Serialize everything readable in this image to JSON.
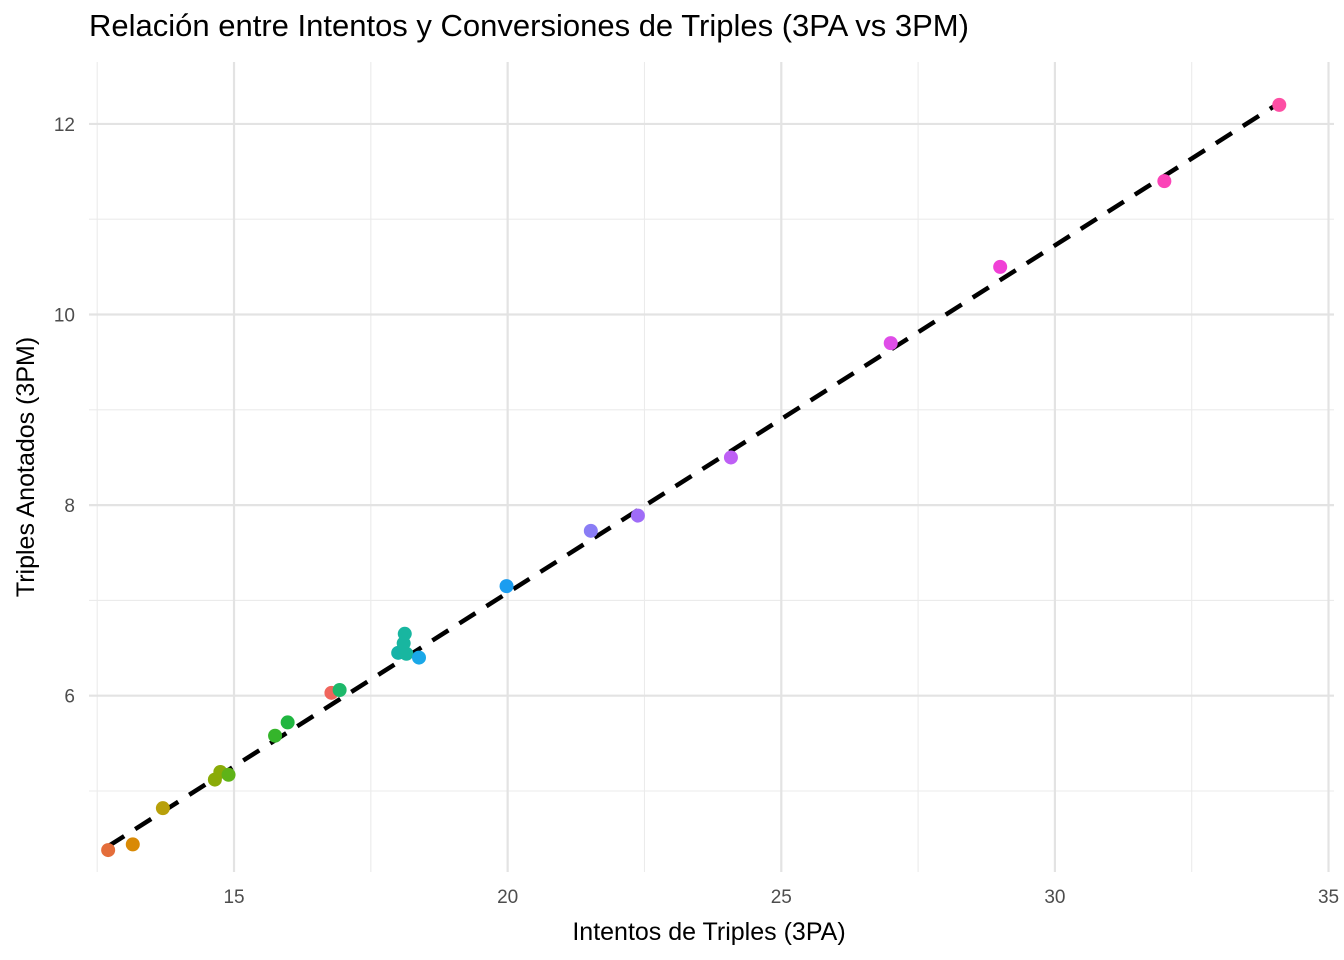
{
  "chart_data": {
    "type": "scatter",
    "title": "Relación entre Intentos y Conversiones de Triples (3PA vs 3PM)",
    "xlabel": "Intentos de Triples (3PA)",
    "ylabel": "Triples Anotados (3PM)",
    "xlim": [
      12.35,
      35.1
    ],
    "ylim": [
      4.15,
      12.65
    ],
    "x_ticks": [
      15,
      20,
      25,
      30,
      35
    ],
    "y_ticks": [
      6,
      8,
      10,
      12
    ],
    "x_minor_ticks": [
      12.5,
      17.5,
      22.5,
      27.5,
      32.5
    ],
    "y_minor_ticks": [
      5,
      7,
      9,
      11
    ],
    "grid": true,
    "legend": "none",
    "points": [
      {
        "x": 12.7,
        "y": 4.38,
        "color": "#e46d3a"
      },
      {
        "x": 13.15,
        "y": 4.44,
        "color": "#d98a05"
      },
      {
        "x": 13.7,
        "y": 4.82,
        "color": "#b8a00a"
      },
      {
        "x": 14.65,
        "y": 5.12,
        "color": "#8aab08"
      },
      {
        "x": 14.75,
        "y": 5.2,
        "color": "#8aab08"
      },
      {
        "x": 14.9,
        "y": 5.17,
        "color": "#5fb318"
      },
      {
        "x": 15.75,
        "y": 5.58,
        "color": "#35b52b"
      },
      {
        "x": 15.98,
        "y": 5.72,
        "color": "#20b640"
      },
      {
        "x": 16.78,
        "y": 6.03,
        "color": "#f0655c"
      },
      {
        "x": 16.93,
        "y": 6.06,
        "color": "#1db86a"
      },
      {
        "x": 18.0,
        "y": 6.45,
        "color": "#15b3a8"
      },
      {
        "x": 18.1,
        "y": 6.55,
        "color": "#18b6a0"
      },
      {
        "x": 18.12,
        "y": 6.65,
        "color": "#18b6a0"
      },
      {
        "x": 18.15,
        "y": 6.44,
        "color": "#18b6a0"
      },
      {
        "x": 18.38,
        "y": 6.4,
        "color": "#1aa8e8"
      },
      {
        "x": 19.98,
        "y": 7.15,
        "color": "#1b9df0"
      },
      {
        "x": 21.52,
        "y": 7.73,
        "color": "#8a7df5"
      },
      {
        "x": 22.38,
        "y": 7.89,
        "color": "#9f6cf7"
      },
      {
        "x": 24.08,
        "y": 8.5,
        "color": "#be5ff5"
      },
      {
        "x": 27.0,
        "y": 9.7,
        "color": "#df4de8"
      },
      {
        "x": 29.0,
        "y": 10.5,
        "color": "#f040d6"
      },
      {
        "x": 32.0,
        "y": 11.4,
        "color": "#fb44b8"
      },
      {
        "x": 34.1,
        "y": 12.2,
        "color": "#fd4fa4"
      }
    ],
    "trendline": {
      "style": "dashed",
      "color": "#000000",
      "x": [
        12.7,
        34.1
      ],
      "y": [
        4.42,
        12.22
      ]
    }
  }
}
